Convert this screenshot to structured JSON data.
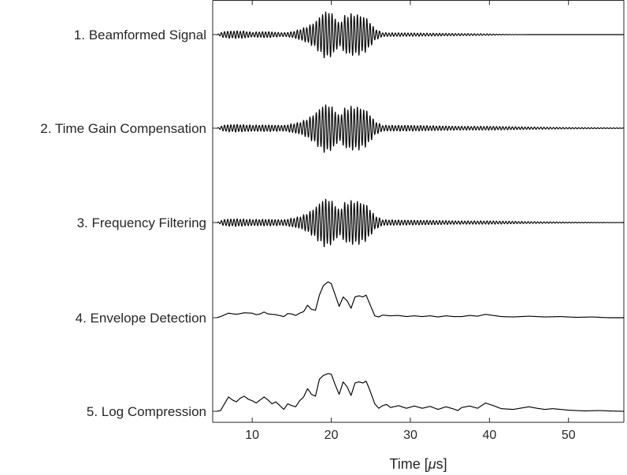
{
  "chart_data": {
    "type": "line",
    "title": "",
    "xlabel_parts": [
      "Time [",
      "μ",
      "s]"
    ],
    "xlim": [
      5,
      57
    ],
    "xticks": [
      10,
      20,
      30,
      40,
      50
    ],
    "xtick_labels": [
      "10",
      "20",
      "30",
      "40",
      "50"
    ],
    "grid": false,
    "series": [
      {
        "name": "1. Beamformed Signal",
        "kind": "rf",
        "center_freq_mhz": 2.5,
        "end": 57,
        "amplitude_knots": [
          [
            5.5,
            0.0
          ],
          [
            6.5,
            0.14
          ],
          [
            8,
            0.16
          ],
          [
            9,
            0.15
          ],
          [
            10,
            0.1
          ],
          [
            11,
            0.12
          ],
          [
            12,
            0.13
          ],
          [
            13,
            0.1
          ],
          [
            14,
            0.08
          ],
          [
            15,
            0.12
          ],
          [
            16,
            0.22
          ],
          [
            17,
            0.35
          ],
          [
            18,
            0.55
          ],
          [
            19,
            0.95
          ],
          [
            19.7,
            1.0
          ],
          [
            20.5,
            0.75
          ],
          [
            21,
            0.45
          ],
          [
            21.6,
            0.78
          ],
          [
            22.5,
            0.88
          ],
          [
            23.5,
            0.85
          ],
          [
            24.5,
            0.7
          ],
          [
            25.5,
            0.25
          ],
          [
            26.5,
            0.08
          ],
          [
            30,
            0.07
          ],
          [
            35,
            0.05
          ],
          [
            40,
            0.03
          ],
          [
            42,
            0.01
          ],
          [
            45,
            0.0
          ],
          [
            57,
            0.0
          ]
        ]
      },
      {
        "name": "2. Time Gain Compensation",
        "kind": "rf",
        "center_freq_mhz": 2.5,
        "end": 57,
        "amplitude_knots": [
          [
            5.5,
            0.0
          ],
          [
            6.5,
            0.14
          ],
          [
            8,
            0.16
          ],
          [
            10,
            0.13
          ],
          [
            12,
            0.14
          ],
          [
            14,
            0.12
          ],
          [
            16,
            0.25
          ],
          [
            17,
            0.4
          ],
          [
            18,
            0.65
          ],
          [
            19,
            1.0
          ],
          [
            19.7,
            1.0
          ],
          [
            20.5,
            0.78
          ],
          [
            21,
            0.5
          ],
          [
            21.6,
            0.82
          ],
          [
            22.5,
            0.92
          ],
          [
            23.5,
            0.9
          ],
          [
            24.5,
            0.75
          ],
          [
            25.5,
            0.3
          ],
          [
            26.5,
            0.12
          ],
          [
            30,
            0.12
          ],
          [
            33,
            0.1
          ],
          [
            36,
            0.08
          ],
          [
            40,
            0.08
          ],
          [
            45,
            0.05
          ],
          [
            50,
            0.03
          ],
          [
            54,
            0.02
          ],
          [
            57,
            0.01
          ]
        ]
      },
      {
        "name": "3. Frequency Filtering",
        "kind": "rf",
        "center_freq_mhz": 2.5,
        "end": 57,
        "amplitude_knots": [
          [
            5.5,
            0.0
          ],
          [
            6.5,
            0.14
          ],
          [
            8,
            0.16
          ],
          [
            10,
            0.13
          ],
          [
            12,
            0.14
          ],
          [
            14,
            0.12
          ],
          [
            16,
            0.25
          ],
          [
            17,
            0.4
          ],
          [
            18,
            0.65
          ],
          [
            19,
            1.0
          ],
          [
            19.7,
            1.0
          ],
          [
            20.5,
            0.78
          ],
          [
            21,
            0.5
          ],
          [
            21.6,
            0.82
          ],
          [
            22.5,
            0.92
          ],
          [
            23.5,
            0.9
          ],
          [
            24.5,
            0.75
          ],
          [
            25.5,
            0.3
          ],
          [
            26.5,
            0.12
          ],
          [
            30,
            0.1
          ],
          [
            33,
            0.09
          ],
          [
            36,
            0.07
          ],
          [
            40,
            0.07
          ],
          [
            45,
            0.04
          ],
          [
            50,
            0.02
          ],
          [
            54,
            0.01
          ],
          [
            57,
            0.0
          ]
        ]
      },
      {
        "name": "4. Envelope Detection",
        "kind": "envelope",
        "end": 57,
        "points": [
          [
            5.5,
            0.0
          ],
          [
            6,
            0.03
          ],
          [
            7,
            0.12
          ],
          [
            8,
            0.09
          ],
          [
            9,
            0.13
          ],
          [
            10,
            0.12
          ],
          [
            10.5,
            0.08
          ],
          [
            11,
            0.1
          ],
          [
            11.5,
            0.15
          ],
          [
            12,
            0.1
          ],
          [
            13,
            0.08
          ],
          [
            14,
            0.03
          ],
          [
            14.5,
            0.11
          ],
          [
            15,
            0.1
          ],
          [
            15.5,
            0.06
          ],
          [
            16,
            0.12
          ],
          [
            16.5,
            0.16
          ],
          [
            17,
            0.33
          ],
          [
            17.5,
            0.22
          ],
          [
            18,
            0.2
          ],
          [
            18.5,
            0.6
          ],
          [
            19,
            0.85
          ],
          [
            19.6,
            0.95
          ],
          [
            20,
            0.9
          ],
          [
            20.5,
            0.6
          ],
          [
            21,
            0.3
          ],
          [
            21.5,
            0.55
          ],
          [
            22,
            0.45
          ],
          [
            22.5,
            0.25
          ],
          [
            23,
            0.55
          ],
          [
            23.5,
            0.58
          ],
          [
            24,
            0.55
          ],
          [
            24.4,
            0.6
          ],
          [
            24.8,
            0.4
          ],
          [
            25.5,
            0.05
          ],
          [
            26,
            0.02
          ],
          [
            26.5,
            0.07
          ],
          [
            27.5,
            0.05
          ],
          [
            28.5,
            0.06
          ],
          [
            29.5,
            0.03
          ],
          [
            30.5,
            0.05
          ],
          [
            31.5,
            0.03
          ],
          [
            32.5,
            0.05
          ],
          [
            33.5,
            0.02
          ],
          [
            34.5,
            0.05
          ],
          [
            35.5,
            0.03
          ],
          [
            36.5,
            0.03
          ],
          [
            37.5,
            0.06
          ],
          [
            38.5,
            0.04
          ],
          [
            39.5,
            0.09
          ],
          [
            40.5,
            0.06
          ],
          [
            41.5,
            0.03
          ],
          [
            43,
            0.02
          ],
          [
            45,
            0.04
          ],
          [
            47,
            0.02
          ],
          [
            49,
            0.03
          ],
          [
            51,
            0.01
          ],
          [
            53,
            0.02
          ],
          [
            55,
            0.0
          ],
          [
            57,
            0.0
          ]
        ]
      },
      {
        "name": "5. Log Compression",
        "kind": "envelope",
        "end": 57,
        "points": [
          [
            5.5,
            0.0
          ],
          [
            6,
            0.02
          ],
          [
            6.5,
            0.2
          ],
          [
            7,
            0.38
          ],
          [
            7.5,
            0.3
          ],
          [
            8,
            0.25
          ],
          [
            8.5,
            0.35
          ],
          [
            9,
            0.4
          ],
          [
            9.5,
            0.32
          ],
          [
            10,
            0.28
          ],
          [
            10.5,
            0.22
          ],
          [
            11,
            0.3
          ],
          [
            11.5,
            0.38
          ],
          [
            12,
            0.3
          ],
          [
            12.5,
            0.2
          ],
          [
            13,
            0.25
          ],
          [
            13.5,
            0.15
          ],
          [
            14,
            0.05
          ],
          [
            14.5,
            0.2
          ],
          [
            15,
            0.15
          ],
          [
            15.5,
            0.12
          ],
          [
            16,
            0.28
          ],
          [
            16.5,
            0.38
          ],
          [
            17,
            0.6
          ],
          [
            17.5,
            0.45
          ],
          [
            18,
            0.4
          ],
          [
            18.5,
            0.85
          ],
          [
            19,
            0.95
          ],
          [
            19.6,
            1.0
          ],
          [
            20,
            0.98
          ],
          [
            20.5,
            0.7
          ],
          [
            21,
            0.45
          ],
          [
            21.5,
            0.78
          ],
          [
            22,
            0.65
          ],
          [
            22.5,
            0.42
          ],
          [
            23,
            0.75
          ],
          [
            23.5,
            0.78
          ],
          [
            24,
            0.75
          ],
          [
            24.4,
            0.8
          ],
          [
            24.8,
            0.6
          ],
          [
            25.5,
            0.2
          ],
          [
            26,
            0.08
          ],
          [
            26.5,
            0.15
          ],
          [
            27,
            0.18
          ],
          [
            27.5,
            0.1
          ],
          [
            28.5,
            0.15
          ],
          [
            29.5,
            0.08
          ],
          [
            30.5,
            0.14
          ],
          [
            31.5,
            0.08
          ],
          [
            32.5,
            0.13
          ],
          [
            33.5,
            0.05
          ],
          [
            34.5,
            0.12
          ],
          [
            35.5,
            0.06
          ],
          [
            36,
            0.02
          ],
          [
            36.5,
            0.1
          ],
          [
            37.5,
            0.14
          ],
          [
            38.5,
            0.08
          ],
          [
            39.5,
            0.22
          ],
          [
            40.5,
            0.15
          ],
          [
            41.5,
            0.07
          ],
          [
            43,
            0.05
          ],
          [
            45,
            0.12
          ],
          [
            46,
            0.08
          ],
          [
            47,
            0.05
          ],
          [
            48,
            0.07
          ],
          [
            50,
            0.03
          ],
          [
            52,
            0.01
          ],
          [
            54,
            0.02
          ],
          [
            55,
            0.01
          ],
          [
            57,
            0.0
          ]
        ]
      }
    ]
  }
}
